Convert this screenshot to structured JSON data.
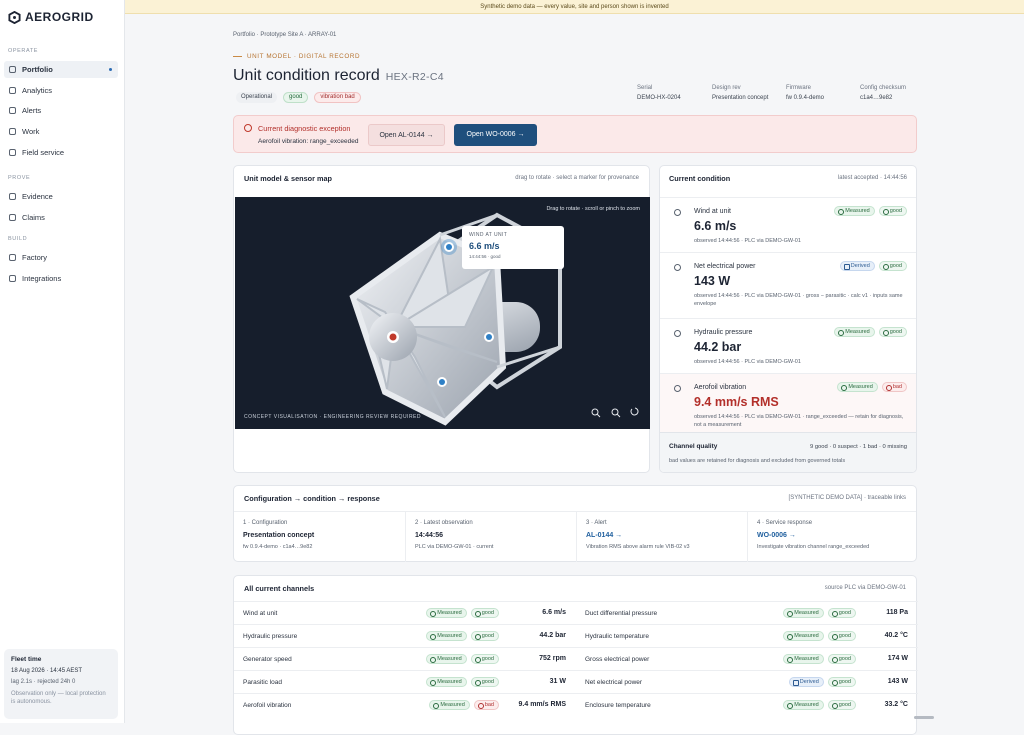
{
  "banner": "Synthetic demo data — every value, site and person shown is invented",
  "sidebar": {
    "logo": "AEROGRID",
    "sections": [
      {
        "label": "OPERATE",
        "items": [
          {
            "label": "Portfolio",
            "active": true
          },
          {
            "label": "Analytics"
          },
          {
            "label": "Alerts"
          },
          {
            "label": "Work"
          },
          {
            "label": "Field service"
          }
        ]
      },
      {
        "label": "PROVE",
        "items": [
          {
            "label": "Evidence"
          },
          {
            "label": "Claims"
          }
        ]
      },
      {
        "label": "BUILD",
        "items": [
          {
            "label": "Factory"
          },
          {
            "label": "Integrations"
          }
        ]
      }
    ],
    "fleet": {
      "title": "Fleet time",
      "time": "18 Aug 2026 · 14:45 AEST",
      "lag": "lag 2.1s · rejected 24h 0",
      "note": "Observation only — local protection is autonomous."
    }
  },
  "header": {
    "breadcrumb": "Portfolio · Prototype Site A · ARRAY-01",
    "eyebrow": "UNIT MODEL · DIGITAL RECORD",
    "title": "Unit condition record",
    "unit_id": "HEX-R2-C4",
    "chips": [
      {
        "text": "Operational",
        "tone": "neutral"
      },
      {
        "text": "good",
        "tone": "good"
      },
      {
        "text": "vibration bad",
        "tone": "bad"
      }
    ],
    "meta": [
      {
        "label": "Serial",
        "value": "DEMO-HX-0204"
      },
      {
        "label": "Design rev",
        "value": "Presentation concept"
      },
      {
        "label": "Firmware",
        "value": "fw 0.9.4-demo"
      },
      {
        "label": "Config checksum",
        "value": "c1a4…9e82"
      }
    ]
  },
  "exception": {
    "title": "Current diagnostic exception",
    "detail": "Aerofoil vibration: range_exceeded",
    "actions": [
      "Open AL-0144 →",
      "Open WO-0006 →"
    ]
  },
  "model": {
    "title": "Unit model & sensor map",
    "hint": "drag to rotate · select a marker for provenance",
    "viewport_hint": "Drag to rotate · scroll or pinch to zoom",
    "popup": {
      "label": "WIND AT UNIT",
      "value": "6.6 m/s",
      "meta": "14:44:56 · good"
    },
    "footer": "CONCEPT VISUALISATION · ENGINEERING REVIEW REQUIRED"
  },
  "condition": {
    "title": "Current condition",
    "meta": "latest accepted · 14:44:56",
    "readings": [
      {
        "name": "Wind at unit",
        "value": "6.6 m/s",
        "source": "Measured",
        "quality": "good",
        "detail": "observed 14:44:56 · PLC via DEMO-GW-01"
      },
      {
        "name": "Net electrical power",
        "value": "143 W",
        "source": "Derived",
        "quality": "good",
        "detail": "observed 14:44:56 · PLC via DEMO-GW-01 · gross − parasitic · calc v1 · inputs same envelope"
      },
      {
        "name": "Hydraulic pressure",
        "value": "44.2 bar",
        "source": "Measured",
        "quality": "good",
        "detail": "observed 14:44:56 · PLC via DEMO-GW-01"
      },
      {
        "name": "Aerofoil vibration",
        "value": "9.4 mm/s RMS",
        "source": "Measured",
        "quality": "bad",
        "detail": "observed 14:44:56 · PLC via DEMO-GW-01 · range_exceeded — retain for diagnosis, not a measurement"
      }
    ],
    "quality_label": "Channel quality",
    "quality_summary": "9 good · 0 suspect · 1 bad · 0 missing",
    "quality_note": "bad values are retained for diagnosis and excluded from governed totals"
  },
  "flow": {
    "title": "Configuration → condition → response",
    "meta": "[SYNTHETIC DEMO DATA] · traceable links",
    "steps": [
      {
        "label": "1 · Configuration",
        "title": "Presentation concept",
        "detail": "fw 0.9.4-demo · c1a4…9e82"
      },
      {
        "label": "2 · Latest observation",
        "title": "14:44:56",
        "detail": "PLC via DEMO-GW-01 · current"
      },
      {
        "label": "3 · Alert",
        "title": "AL-0144 →",
        "detail": "Vibration RMS above alarm rule VIB-02 v3",
        "link": true
      },
      {
        "label": "4 · Service response",
        "title": "WO-0006 →",
        "detail": "Investigate vibration channel range_exceeded",
        "link": true
      }
    ]
  },
  "channels": {
    "title": "All current channels",
    "meta": "source PLC via DEMO-GW-01",
    "left": [
      {
        "name": "Wind at unit",
        "source": "Measured",
        "quality": "good",
        "value": "6.6 m/s"
      },
      {
        "name": "Hydraulic pressure",
        "source": "Measured",
        "quality": "good",
        "value": "44.2 bar"
      },
      {
        "name": "Generator speed",
        "source": "Measured",
        "quality": "good",
        "value": "752 rpm"
      },
      {
        "name": "Parasitic load",
        "source": "Measured",
        "quality": "good",
        "value": "31 W"
      },
      {
        "name": "Aerofoil vibration",
        "source": "Measured",
        "quality": "bad",
        "value": "9.4 mm/s RMS"
      }
    ],
    "right": [
      {
        "name": "Duct differential pressure",
        "source": "Measured",
        "quality": "good",
        "value": "118 Pa"
      },
      {
        "name": "Hydraulic temperature",
        "source": "Measured",
        "quality": "good",
        "value": "40.2 °C"
      },
      {
        "name": "Gross electrical power",
        "source": "Measured",
        "quality": "good",
        "value": "174 W"
      },
      {
        "name": "Net electrical power",
        "source": "Derived",
        "quality": "good",
        "value": "143 W"
      },
      {
        "name": "Enclosure temperature",
        "source": "Measured",
        "quality": "good",
        "value": "33.2 °C"
      }
    ]
  }
}
